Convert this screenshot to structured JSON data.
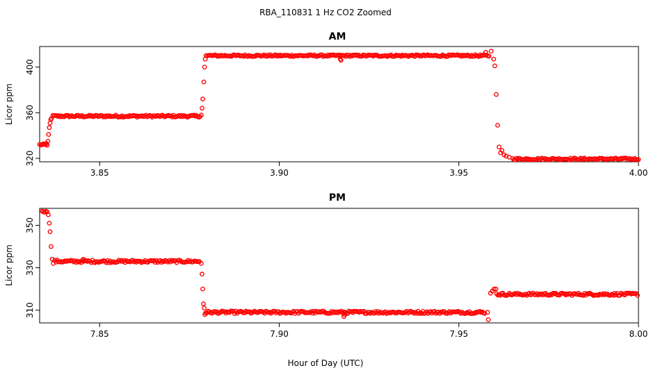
{
  "figure": {
    "suptitle": "RBA_110831  1 Hz CO2 Zoomed",
    "xlabel": "Hour of Day (UTC)",
    "marker_color": "#ff0000"
  },
  "chart_data": [
    {
      "type": "scatter",
      "title": "AM",
      "xlabel": "",
      "ylabel": "Licor ppm",
      "xlim": [
        3.8333,
        4.0
      ],
      "ylim": [
        317,
        418
      ],
      "xticks": [
        3.85,
        3.9,
        3.95,
        4.0
      ],
      "xtick_labels": [
        "3.85",
        "3.90",
        "3.95",
        "4.00"
      ],
      "yticks": [
        320,
        360,
        400
      ],
      "ytick_labels": [
        "320",
        "360",
        "400"
      ],
      "grid": false,
      "series": [
        {
          "marker": "open-circle",
          "color": "#ff0000",
          "segments": [
            {
              "x_start": 3.8333,
              "x_end": 3.8355,
              "value": 332,
              "noise": 0.8
            },
            {
              "x_start": 3.837,
              "x_end": 3.878,
              "value": 357,
              "noise": 0.9
            },
            {
              "x_start": 3.88,
              "x_end": 3.9585,
              "value": 410,
              "noise": 0.8
            },
            {
              "x_start": 3.965,
              "x_end": 4.0,
              "value": 319.5,
              "noise": 0.8
            }
          ],
          "points": [
            {
              "x": 3.834,
              "y": 332
            },
            {
              "x": 3.8352,
              "y": 333
            },
            {
              "x": 3.8356,
              "y": 335
            },
            {
              "x": 3.8358,
              "y": 341
            },
            {
              "x": 3.836,
              "y": 347
            },
            {
              "x": 3.8362,
              "y": 351
            },
            {
              "x": 3.8364,
              "y": 354
            },
            {
              "x": 3.8366,
              "y": 355
            },
            {
              "x": 3.8783,
              "y": 358
            },
            {
              "x": 3.8785,
              "y": 364
            },
            {
              "x": 3.8787,
              "y": 372
            },
            {
              "x": 3.879,
              "y": 387
            },
            {
              "x": 3.8792,
              "y": 400
            },
            {
              "x": 3.8794,
              "y": 407
            },
            {
              "x": 3.8796,
              "y": 410
            },
            {
              "x": 3.917,
              "y": 407
            },
            {
              "x": 3.9172,
              "y": 406
            },
            {
              "x": 3.9575,
              "y": 413
            },
            {
              "x": 3.959,
              "y": 414
            },
            {
              "x": 3.9597,
              "y": 407
            },
            {
              "x": 3.96,
              "y": 401
            },
            {
              "x": 3.9604,
              "y": 376
            },
            {
              "x": 3.9608,
              "y": 349
            },
            {
              "x": 3.9612,
              "y": 330
            },
            {
              "x": 3.9616,
              "y": 325
            },
            {
              "x": 3.962,
              "y": 327
            },
            {
              "x": 3.9626,
              "y": 323
            },
            {
              "x": 3.9632,
              "y": 322
            },
            {
              "x": 3.964,
              "y": 321
            }
          ]
        }
      ]
    },
    {
      "type": "scatter",
      "title": "PM",
      "xlabel": "Hour of Day (UTC)",
      "ylabel": "Licor ppm",
      "xlim": [
        7.8333,
        8.0
      ],
      "ylim": [
        304,
        358
      ],
      "xticks": [
        7.85,
        7.9,
        7.95,
        8.0
      ],
      "xtick_labels": [
        "7.85",
        "7.90",
        "7.95",
        "8.00"
      ],
      "yticks": [
        310,
        330,
        350
      ],
      "ytick_labels": [
        "310",
        "330",
        "350"
      ],
      "grid": false,
      "series": [
        {
          "marker": "open-circle",
          "color": "#ff0000",
          "segments": [
            {
              "x_start": 7.834,
              "x_end": 7.8355,
              "value": 356.5,
              "noise": 0.3
            },
            {
              "x_start": 7.8375,
              "x_end": 7.878,
              "value": 333,
              "noise": 0.6
            },
            {
              "x_start": 7.8795,
              "x_end": 7.9575,
              "value": 309,
              "noise": 0.6
            },
            {
              "x_start": 7.9605,
              "x_end": 8.0,
              "value": 317.5,
              "noise": 0.6
            }
          ],
          "points": [
            {
              "x": 7.8357,
              "y": 355
            },
            {
              "x": 7.836,
              "y": 351
            },
            {
              "x": 7.8362,
              "y": 347
            },
            {
              "x": 7.8365,
              "y": 340
            },
            {
              "x": 7.8368,
              "y": 334
            },
            {
              "x": 7.8371,
              "y": 332
            },
            {
              "x": 7.8455,
              "y": 334
            },
            {
              "x": 7.8783,
              "y": 332
            },
            {
              "x": 7.8785,
              "y": 327
            },
            {
              "x": 7.8787,
              "y": 320
            },
            {
              "x": 7.8789,
              "y": 313
            },
            {
              "x": 7.8791,
              "y": 311
            },
            {
              "x": 7.8793,
              "y": 308
            },
            {
              "x": 7.918,
              "y": 307
            },
            {
              "x": 7.9182,
              "y": 308
            },
            {
              "x": 7.958,
              "y": 309
            },
            {
              "x": 7.9582,
              "y": 305.5
            },
            {
              "x": 7.9588,
              "y": 318
            },
            {
              "x": 7.9593,
              "y": 319
            },
            {
              "x": 7.9598,
              "y": 320
            },
            {
              "x": 7.9603,
              "y": 320
            }
          ]
        }
      ]
    }
  ]
}
